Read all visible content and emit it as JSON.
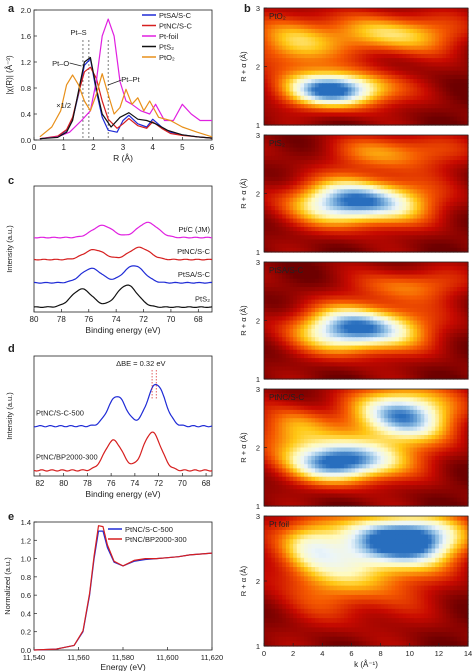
{
  "chart_data": [
    {
      "panel": "a",
      "type": "line",
      "xlabel": "R (Å)",
      "ylabel": "|χ(R)| (Å⁻³)",
      "xlim": [
        0,
        6
      ],
      "ylim": [
        0,
        2
      ],
      "xticks": [
        "0",
        "1",
        "2",
        "3",
        "4",
        "5",
        "6"
      ],
      "yticks": [
        "0.0",
        "0.4",
        "0.8",
        "1.2",
        "1.6",
        "2.0"
      ],
      "legend": [
        "PtSA/S-C",
        "PtNC/S-C",
        "Pt-foil",
        "PtS₂",
        "PtO₂"
      ],
      "annotations": [
        "Pt–S",
        "Pt–O",
        "Pt–Pt",
        "×1/2"
      ],
      "series": [
        {
          "name": "PtSA/S-C",
          "color": "#1f2bd6",
          "x": [
            0.2,
            0.8,
            1.1,
            1.3,
            1.5,
            1.7,
            1.9,
            2.1,
            2.3,
            2.5,
            2.8,
            3.0,
            3.2,
            3.5,
            3.8,
            4.0,
            4.3,
            4.6,
            5.0,
            5.5,
            6.0
          ],
          "y": [
            0.02,
            0.05,
            0.15,
            0.32,
            0.7,
            1.15,
            1.25,
            0.75,
            0.35,
            0.15,
            0.12,
            0.3,
            0.38,
            0.25,
            0.2,
            0.32,
            0.2,
            0.12,
            0.08,
            0.05,
            0.03
          ]
        },
        {
          "name": "PtNC/S-C",
          "color": "#d61f1f",
          "x": [
            0.2,
            0.8,
            1.1,
            1.3,
            1.5,
            1.7,
            1.9,
            2.1,
            2.3,
            2.5,
            2.8,
            3.0,
            3.2,
            3.5,
            3.8,
            4.0,
            4.3,
            4.6,
            5.0,
            5.5,
            6.0
          ],
          "y": [
            0.02,
            0.06,
            0.16,
            0.35,
            0.72,
            1.05,
            1.12,
            0.95,
            0.6,
            0.32,
            0.18,
            0.25,
            0.33,
            0.22,
            0.18,
            0.28,
            0.18,
            0.1,
            0.07,
            0.05,
            0.03
          ]
        },
        {
          "name": "Pt-foil",
          "color": "#e020e0",
          "x": [
            0.2,
            0.8,
            1.2,
            1.6,
            1.9,
            2.1,
            2.3,
            2.5,
            2.7,
            2.9,
            3.1,
            3.3,
            3.6,
            3.9,
            4.1,
            4.4,
            4.7,
            5.0,
            5.3,
            5.6,
            6.0
          ],
          "y": [
            0.02,
            0.05,
            0.12,
            0.3,
            0.45,
            0.9,
            1.6,
            1.86,
            1.6,
            0.9,
            0.6,
            0.55,
            0.45,
            0.4,
            0.55,
            0.3,
            0.3,
            0.55,
            0.4,
            0.3,
            0.3
          ]
        },
        {
          "name": "PtS₂",
          "color": "#111111",
          "x": [
            0.2,
            0.8,
            1.1,
            1.3,
            1.5,
            1.7,
            1.9,
            2.1,
            2.3,
            2.6,
            2.9,
            3.2,
            3.5,
            3.8,
            4.1,
            4.5,
            5.0,
            5.5,
            6.0
          ],
          "y": [
            0.02,
            0.04,
            0.12,
            0.3,
            0.75,
            1.2,
            1.27,
            0.8,
            0.4,
            0.2,
            0.35,
            0.42,
            0.32,
            0.3,
            0.25,
            0.15,
            0.08,
            0.05,
            0.03
          ]
        },
        {
          "name": "PtO₂",
          "color": "#e8901a",
          "x": [
            0.2,
            0.6,
            0.9,
            1.1,
            1.3,
            1.5,
            1.7,
            1.9,
            2.1,
            2.3,
            2.5,
            2.7,
            2.9,
            3.1,
            3.3,
            3.5,
            3.7,
            3.9,
            4.2,
            4.6,
            5.0,
            5.5,
            6.0
          ],
          "y": [
            0.05,
            0.2,
            0.45,
            0.85,
            1.0,
            0.85,
            0.6,
            0.45,
            0.7,
            1.02,
            0.7,
            0.4,
            0.5,
            0.78,
            0.55,
            0.65,
            0.45,
            0.6,
            0.35,
            0.3,
            0.2,
            0.12,
            0.05
          ]
        }
      ]
    },
    {
      "panel": "b",
      "type": "heatmap",
      "xlabel": "k (Å⁻¹)",
      "ylabel": "R + α (Å)",
      "xlim": [
        0,
        14
      ],
      "ylim": [
        1,
        3
      ],
      "xticks": [
        "0",
        "2",
        "4",
        "6",
        "8",
        "10",
        "12",
        "14"
      ],
      "yticks": [
        "1",
        "2",
        "3"
      ],
      "maps": [
        {
          "label": "PtO₂",
          "blobs": [
            {
              "k": 5,
              "r": 1.6,
              "sk": 2.6,
              "sr": 0.22,
              "a": 1.0
            },
            {
              "k": 9,
              "r": 2.55,
              "sk": 3,
              "sr": 0.25,
              "a": 0.55
            },
            {
              "k": 2,
              "r": 2.4,
              "sk": 2,
              "sr": 0.35,
              "a": 0.5
            }
          ]
        },
        {
          "label": "PtS₂",
          "blobs": [
            {
              "k": 6.5,
              "r": 1.85,
              "sk": 3.2,
              "sr": 0.28,
              "a": 1.0
            },
            {
              "k": 9,
              "r": 2.7,
              "sk": 3,
              "sr": 0.22,
              "a": 0.4
            }
          ]
        },
        {
          "label": "PtSA/S-C",
          "blobs": [
            {
              "k": 6.5,
              "r": 1.85,
              "sk": 3.0,
              "sr": 0.28,
              "a": 1.0
            },
            {
              "k": 10,
              "r": 2.6,
              "sk": 2.5,
              "sr": 0.2,
              "a": 0.35
            }
          ]
        },
        {
          "label": "PtNC/S-C",
          "blobs": [
            {
              "k": 5.5,
              "r": 1.75,
              "sk": 2.8,
              "sr": 0.25,
              "a": 1.0
            },
            {
              "k": 9.5,
              "r": 2.55,
              "sk": 2.4,
              "sr": 0.35,
              "a": 0.95
            },
            {
              "k": 2,
              "r": 2.3,
              "sk": 1.8,
              "sr": 0.3,
              "a": 0.45
            }
          ]
        },
        {
          "label": "Pt foil",
          "blobs": [
            {
              "k": 10,
              "r": 2.65,
              "sk": 2.6,
              "sr": 0.28,
              "a": 1.0
            },
            {
              "k": 6,
              "r": 2.2,
              "sk": 3.5,
              "sr": 0.5,
              "a": 0.5
            },
            {
              "k": 3,
              "r": 2.6,
              "sk": 1.5,
              "sr": 0.3,
              "a": 0.4
            }
          ]
        }
      ]
    },
    {
      "panel": "c",
      "type": "line",
      "xlabel": "Binding energy (eV)",
      "ylabel": "Intensity (a.u.)",
      "xlim": [
        80,
        67
      ],
      "reversed": true,
      "xticks": [
        "80",
        "78",
        "76",
        "74",
        "72",
        "70",
        "68"
      ],
      "labels": [
        {
          "text": "Pt/C (JM)",
          "color": "#e020e0",
          "offset": 3.0,
          "peaks": [
            [
              75.0,
              0.55
            ],
            [
              71.7,
              0.68
            ]
          ]
        },
        {
          "text": "PtNC/S-C",
          "color": "#d61f1f",
          "offset": 2.05,
          "peaks": [
            [
              75.6,
              0.45
            ],
            [
              72.3,
              0.55
            ]
          ]
        },
        {
          "text": "PtSA/S-C",
          "color": "#1f2bd6",
          "offset": 1.05,
          "peaks": [
            [
              75.8,
              0.65
            ],
            [
              72.7,
              0.78
            ]
          ]
        },
        {
          "text": "PtS₂",
          "color": "#111111",
          "offset": 0.0,
          "peaks": [
            [
              76.5,
              0.82
            ],
            [
              73.2,
              1.0
            ]
          ]
        }
      ]
    },
    {
      "panel": "d",
      "type": "line",
      "xlabel": "Binding energy (eV)",
      "ylabel": "Intensity (a.u.)",
      "xlim": [
        82.5,
        67.5
      ],
      "reversed": true,
      "xticks": [
        "82",
        "80",
        "78",
        "76",
        "74",
        "72",
        "70",
        "68"
      ],
      "annotations": [
        "ΔBE = 0.32 eV"
      ],
      "labels": [
        {
          "text": "PtNC/S-C-500",
          "color": "#1f2bd6",
          "offset": 1.05,
          "peaks": [
            [
              75.5,
              0.75
            ],
            [
              72.2,
              1.05
            ]
          ]
        },
        {
          "text": "PtNC/BP2000-300",
          "color": "#d61f1f",
          "offset": 0.0,
          "peaks": [
            [
              75.8,
              0.75
            ],
            [
              72.55,
              0.95
            ]
          ]
        }
      ]
    },
    {
      "panel": "e",
      "type": "line",
      "xlabel": "Energy (eV)",
      "ylabel": "Normalized (a.u.)",
      "xlim": [
        11540,
        11620
      ],
      "ylim": [
        0,
        1.4
      ],
      "xticks": [
        "11,540",
        "11,560",
        "11,580",
        "11,600",
        "11,620"
      ],
      "yticks": [
        "0.0",
        "0.2",
        "0.4",
        "0.6",
        "0.8",
        "1.0",
        "1.2",
        "1.4"
      ],
      "series": [
        {
          "name": "PtNC/S-C-500",
          "color": "#1f2bd6",
          "x": [
            11540,
            11550,
            11558,
            11562,
            11565,
            11567,
            11569,
            11571,
            11573,
            11576,
            11580,
            11585,
            11590,
            11595,
            11600,
            11605,
            11610,
            11620
          ],
          "y": [
            0.0,
            0.01,
            0.05,
            0.2,
            0.6,
            1.0,
            1.3,
            1.3,
            1.12,
            0.96,
            0.92,
            0.97,
            0.99,
            1.0,
            1.01,
            1.02,
            1.04,
            1.06
          ]
        },
        {
          "name": "PtNC/BP2000-300",
          "color": "#d61f1f",
          "x": [
            11540,
            11550,
            11558,
            11562,
            11565,
            11567,
            11569,
            11571,
            11573,
            11576,
            11580,
            11585,
            11590,
            11595,
            11600,
            11605,
            11610,
            11620
          ],
          "y": [
            0.0,
            0.01,
            0.05,
            0.21,
            0.62,
            1.03,
            1.36,
            1.35,
            1.15,
            0.97,
            0.92,
            0.98,
            1.0,
            1.0,
            1.01,
            1.02,
            1.04,
            1.06
          ]
        }
      ]
    }
  ],
  "panel_letters": [
    "a",
    "b",
    "c",
    "d",
    "e"
  ]
}
